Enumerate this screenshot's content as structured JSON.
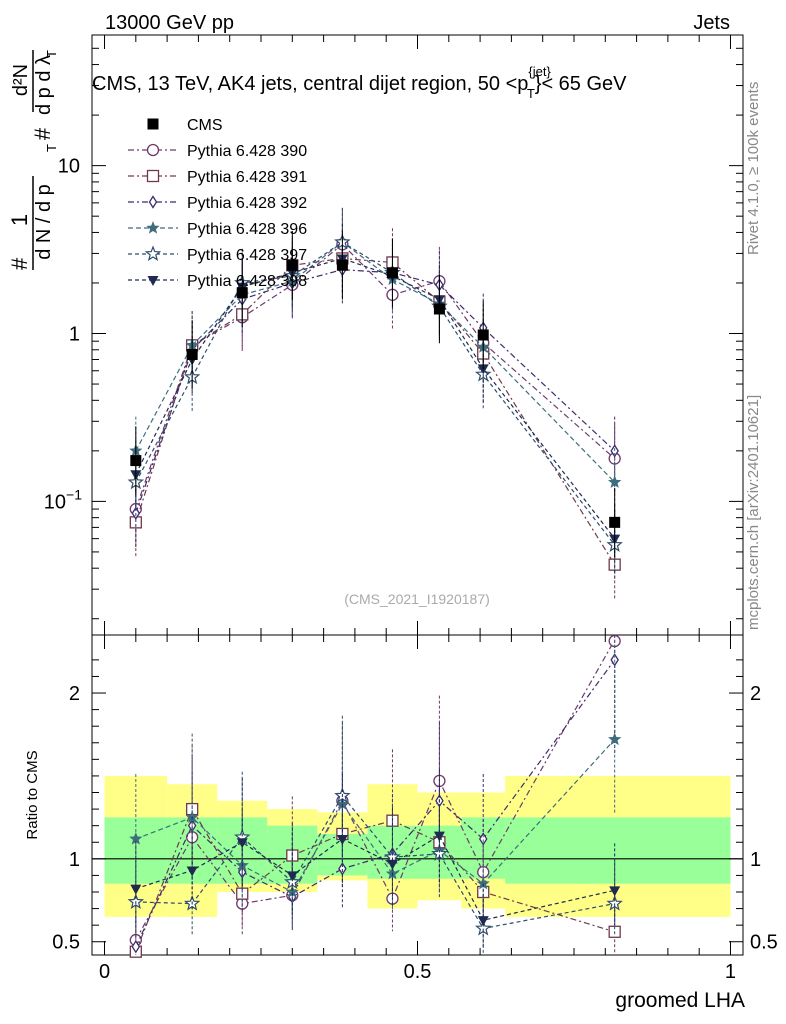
{
  "header": {
    "left": "13000 GeV pp",
    "right": "Jets"
  },
  "title": "CMS, 13 TeV, AK4 jets, central dijet region, 50 <p_T^{jet}< 65 GeV",
  "title_parts": {
    "a": "CMS, 13 TeV, AK4 jets, central dijet region, 50 <",
    "p": "p",
    "sup": "{jet}",
    "sub": "T",
    "b": "}< 65 GeV"
  },
  "side_text": {
    "rivet": "Rivet 4.1.0, ≥ 100k events",
    "mcplots": "mcplots.cern.ch [arXiv:2401.10621]"
  },
  "watermark": "(CMS_2021_I1920187)",
  "ylabel_main": "1/(dN/dp_T) d²N/(dp_T dλ)",
  "ylabel_ratio": "Ratio to CMS",
  "xlabel": "groomed LHA",
  "colors": {
    "cms": "#000000",
    "s390": "#6e3a6e",
    "s391": "#6e3a4a",
    "s392": "#3e2a6e",
    "s396": "#3e6e7e",
    "s397": "#2e4e6e",
    "s398": "#1e2a4e",
    "band_inner": "#99ff99",
    "band_outer": "#ffff88"
  },
  "chart_data": [
    {
      "type": "scatter",
      "panel": "main",
      "yscale": "log",
      "xlim": [
        -0.02,
        1.02
      ],
      "ylim": [
        0.016,
        60
      ],
      "xticks": [
        "0",
        "0.5",
        "1"
      ],
      "yticks": [
        "10^{-1}",
        "1",
        "10"
      ],
      "bins": [
        0.05,
        0.14,
        0.22,
        0.3,
        0.38,
        0.46,
        0.535,
        0.605,
        0.815
      ],
      "band_edges": [
        0.0,
        0.1,
        0.18,
        0.26,
        0.34,
        0.42,
        0.5,
        0.57,
        0.64,
        1.0
      ],
      "series": [
        {
          "name": "CMS",
          "key": "cms",
          "marker": "square-filled",
          "values": [
            0.175,
            0.75,
            1.75,
            2.55,
            2.55,
            2.3,
            1.4,
            0.98,
            0.075
          ]
        },
        {
          "name": "Pythia 6.428 390",
          "key": "s390",
          "marker": "circle",
          "values": [
            0.09,
            0.85,
            1.25,
            1.95,
            3.4,
            1.7,
            2.05,
            0.88,
            0.18
          ]
        },
        {
          "name": "Pythia 6.428 391",
          "key": "s391",
          "marker": "square",
          "values": [
            0.075,
            0.85,
            1.3,
            2.55,
            2.8,
            2.65,
            1.55,
            0.76,
            0.042
          ]
        },
        {
          "name": "Pythia 6.428 392",
          "key": "s392",
          "marker": "diamond",
          "values": [
            0.085,
            0.8,
            1.6,
            2.0,
            2.4,
            2.3,
            1.95,
            1.08,
            0.2
          ]
        },
        {
          "name": "Pythia 6.428 396",
          "key": "s396",
          "marker": "star-filled",
          "values": [
            0.2,
            0.85,
            1.7,
            2.05,
            3.5,
            2.1,
            1.5,
            0.83,
            0.13
          ]
        },
        {
          "name": "Pythia 6.428 397",
          "key": "s397",
          "marker": "star",
          "values": [
            0.13,
            0.55,
            2.0,
            2.2,
            3.5,
            2.3,
            1.45,
            0.57,
            0.055
          ]
        },
        {
          "name": "Pythia 6.428 398",
          "key": "s398",
          "marker": "triangle-down",
          "values": [
            0.145,
            0.7,
            1.9,
            2.3,
            2.8,
            2.2,
            1.6,
            0.62,
            0.06
          ]
        }
      ]
    },
    {
      "type": "scatter",
      "panel": "ratio",
      "xlim": [
        -0.02,
        1.02
      ],
      "ylim": [
        0.42,
        2.35
      ],
      "xticks": [
        "0",
        "0.5",
        "1"
      ],
      "yticks": [
        "0.5",
        "1",
        "2"
      ],
      "band_inner": [
        [
          0.85,
          1.25
        ],
        [
          0.85,
          1.25
        ],
        [
          0.85,
          1.25
        ],
        [
          0.85,
          1.2
        ],
        [
          0.9,
          1.15
        ],
        [
          0.88,
          1.2
        ],
        [
          0.88,
          1.2
        ],
        [
          0.88,
          1.25
        ],
        [
          0.85,
          1.25
        ]
      ],
      "band_outer": [
        [
          0.65,
          1.5
        ],
        [
          0.65,
          1.45
        ],
        [
          0.8,
          1.35
        ],
        [
          0.8,
          1.3
        ],
        [
          0.87,
          1.28
        ],
        [
          0.7,
          1.45
        ],
        [
          0.75,
          1.4
        ],
        [
          0.7,
          1.4
        ],
        [
          0.65,
          1.5
        ]
      ],
      "series": [
        {
          "name": "Pythia 6.428 390",
          "key": "s390",
          "values": [
            0.51,
            1.13,
            0.73,
            0.78,
            1.35,
            0.76,
            1.47,
            0.92,
            2.32
          ]
        },
        {
          "name": "Pythia 6.428 391",
          "key": "s391",
          "values": [
            0.44,
            1.3,
            0.79,
            1.02,
            1.15,
            1.23,
            1.1,
            0.8,
            0.56
          ]
        },
        {
          "name": "Pythia 6.428 392",
          "key": "s392",
          "values": [
            0.47,
            1.2,
            0.92,
            0.77,
            0.94,
            1.03,
            1.35,
            1.12,
            2.2
          ]
        },
        {
          "name": "Pythia 6.428 396",
          "key": "s396",
          "values": [
            1.12,
            1.25,
            0.96,
            0.8,
            1.33,
            0.91,
            1.05,
            0.85,
            1.72
          ]
        },
        {
          "name": "Pythia 6.428 397",
          "key": "s397",
          "values": [
            0.74,
            0.73,
            1.13,
            0.86,
            1.38,
            1.01,
            1.03,
            0.58,
            0.73
          ]
        },
        {
          "name": "Pythia 6.428 398",
          "key": "s398",
          "values": [
            0.82,
            0.93,
            1.1,
            0.9,
            1.12,
            0.97,
            1.14,
            0.63,
            0.81
          ]
        }
      ]
    }
  ]
}
